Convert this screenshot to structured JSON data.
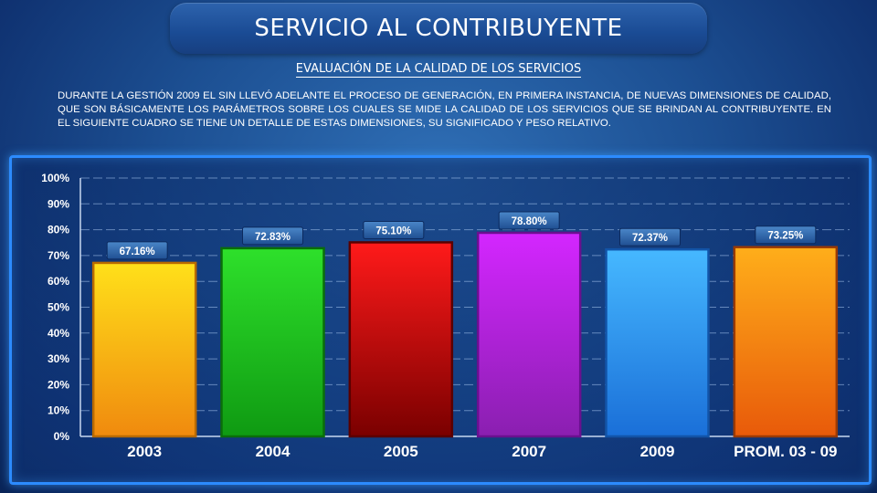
{
  "header": {
    "title": "SERVICIO AL CONTRIBUYENTE",
    "subtitle": "EVALUACIÓN DE LA CALIDAD DE LOS SERVICIOS",
    "paragraph": "DURANTE LA GESTIÓN 2009 EL SIN LLEVÓ ADELANTE EL PROCESO DE GENERACIÓN, EN PRIMERA INSTANCIA, DE NUEVAS DIMENSIONES DE CALIDAD, QUE SON BÁSICAMENTE LOS PARÁMETROS SOBRE LOS CUALES SE MIDE LA CALIDAD DE LOS SERVICIOS QUE SE BRINDAN AL CONTRIBUYENTE. EN EL SIGUIENTE CUADRO SE TIENE UN DETALLE DE ESTAS DIMENSIONES, SU SIGNIFICADO Y PESO RELATIVO."
  },
  "chart_data": {
    "type": "bar",
    "title": "",
    "xlabel": "",
    "ylabel": "",
    "categories": [
      "2003",
      "2004",
      "2005",
      "2007",
      "2009",
      "PROM. 03 - 09"
    ],
    "values": [
      67.16,
      72.83,
      75.1,
      78.8,
      72.37,
      73.25
    ],
    "data_labels": [
      "67.16%",
      "72.83%",
      "75.10%",
      "78.80%",
      "72.37%",
      "73.25%"
    ],
    "y_ticks": [
      "0%",
      "10%",
      "20%",
      "30%",
      "40%",
      "50%",
      "60%",
      "70%",
      "80%",
      "90%",
      "100%"
    ],
    "ylim": [
      0,
      100
    ],
    "grid": true,
    "legend": "none",
    "bar_colors": [
      [
        "#ffe01a",
        "#f08a0e"
      ],
      [
        "#2ee02b",
        "#0f9a12"
      ],
      [
        "#ff1a1a",
        "#7a0000"
      ],
      [
        "#d426ff",
        "#8a1fb0"
      ],
      [
        "#46b8ff",
        "#1a6fd8"
      ],
      [
        "#ffae1a",
        "#e85a0a"
      ]
    ],
    "bar_edge_colors": [
      "#b86a00",
      "#0a6e0a",
      "#5a0000",
      "#6a1090",
      "#1254a8",
      "#9a3a05"
    ]
  }
}
